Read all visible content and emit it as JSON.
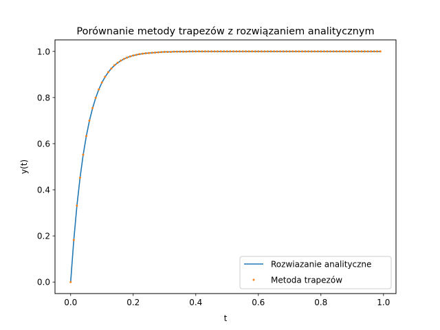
{
  "chart_data": {
    "type": "line",
    "title": "Porównanie metody trapezów z rozwiązaniem analitycznym",
    "xlabel": "t",
    "ylabel": "y(t)",
    "xlim": [
      -0.05,
      1.04
    ],
    "ylim": [
      -0.05,
      1.05
    ],
    "xticks": [
      0.0,
      0.2,
      0.4,
      0.6,
      0.8,
      1.0
    ],
    "xtick_labels": [
      "0.0",
      "0.2",
      "0.4",
      "0.6",
      "0.8",
      "1.0"
    ],
    "yticks": [
      0.0,
      0.2,
      0.4,
      0.6,
      0.8,
      1.0
    ],
    "ytick_labels": [
      "0.0",
      "0.2",
      "0.4",
      "0.6",
      "0.8",
      "1.0"
    ],
    "legend_position": "lower-right",
    "grid": false,
    "series": [
      {
        "name": "Rozwiazanie analityczne",
        "kind": "line",
        "color": "#1f77b4",
        "x": [
          0.0,
          0.01,
          0.02,
          0.03,
          0.04,
          0.05,
          0.06,
          0.07,
          0.08,
          0.09,
          0.1,
          0.11,
          0.12,
          0.13,
          0.14,
          0.15,
          0.16,
          0.17,
          0.18,
          0.19,
          0.2,
          0.21,
          0.22,
          0.23,
          0.24,
          0.25,
          0.26,
          0.27,
          0.28,
          0.29,
          0.3,
          0.32,
          0.34,
          0.36,
          0.38,
          0.4,
          0.45,
          0.5,
          0.55,
          0.6,
          0.65,
          0.7,
          0.75,
          0.8,
          0.85,
          0.9,
          0.95,
          0.99
        ],
        "y": [
          0.0,
          0.181,
          0.33,
          0.451,
          0.551,
          0.632,
          0.699,
          0.753,
          0.798,
          0.835,
          0.865,
          0.889,
          0.909,
          0.926,
          0.939,
          0.95,
          0.959,
          0.967,
          0.973,
          0.978,
          0.982,
          0.985,
          0.988,
          0.99,
          0.992,
          0.993,
          0.994,
          0.995,
          0.996,
          0.997,
          0.998,
          0.998,
          0.999,
          0.999,
          0.999,
          1.0,
          1.0,
          1.0,
          1.0,
          1.0,
          1.0,
          1.0,
          1.0,
          1.0,
          1.0,
          1.0,
          1.0,
          1.0
        ]
      },
      {
        "name": "Metoda trapezów",
        "kind": "scatter",
        "color": "#ff7f0e",
        "x": [
          0.0,
          0.01,
          0.02,
          0.03,
          0.04,
          0.05,
          0.06,
          0.07,
          0.08,
          0.09,
          0.1,
          0.11,
          0.12,
          0.13,
          0.14,
          0.15,
          0.16,
          0.17,
          0.18,
          0.19,
          0.2,
          0.21,
          0.22,
          0.23,
          0.24,
          0.25,
          0.26,
          0.27,
          0.28,
          0.29,
          0.3,
          0.31,
          0.32,
          0.33,
          0.34,
          0.35,
          0.36,
          0.37,
          0.38,
          0.39,
          0.4,
          0.41,
          0.42,
          0.43,
          0.44,
          0.45,
          0.46,
          0.47,
          0.48,
          0.49,
          0.5,
          0.51,
          0.52,
          0.53,
          0.54,
          0.55,
          0.56,
          0.57,
          0.58,
          0.59,
          0.6,
          0.61,
          0.62,
          0.63,
          0.64,
          0.65,
          0.66,
          0.67,
          0.68,
          0.69,
          0.7,
          0.71,
          0.72,
          0.73,
          0.74,
          0.75,
          0.76,
          0.77,
          0.78,
          0.79,
          0.8,
          0.81,
          0.82,
          0.83,
          0.84,
          0.85,
          0.86,
          0.87,
          0.88,
          0.89,
          0.9,
          0.91,
          0.92,
          0.93,
          0.94,
          0.95,
          0.96,
          0.97,
          0.98,
          0.99
        ],
        "y": [
          0.0,
          0.182,
          0.331,
          0.452,
          0.552,
          0.633,
          0.7,
          0.754,
          0.799,
          0.835,
          0.865,
          0.89,
          0.91,
          0.926,
          0.94,
          0.951,
          0.96,
          0.967,
          0.973,
          0.978,
          0.982,
          0.985,
          0.988,
          0.99,
          0.992,
          0.993,
          0.994,
          0.995,
          0.996,
          0.997,
          0.998,
          0.998,
          0.998,
          0.999,
          0.999,
          0.999,
          0.999,
          0.999,
          1.0,
          1.0,
          1.0,
          1.0,
          1.0,
          1.0,
          1.0,
          1.0,
          1.0,
          1.0,
          1.0,
          1.0,
          1.0,
          1.0,
          1.0,
          1.0,
          1.0,
          1.0,
          1.0,
          1.0,
          1.0,
          1.0,
          1.0,
          1.0,
          1.0,
          1.0,
          1.0,
          1.0,
          1.0,
          1.0,
          1.0,
          1.0,
          1.0,
          1.0,
          1.0,
          1.0,
          1.0,
          1.0,
          1.0,
          1.0,
          1.0,
          1.0,
          1.0,
          1.0,
          1.0,
          1.0,
          1.0,
          1.0,
          1.0,
          1.0,
          1.0,
          1.0,
          1.0,
          1.0,
          1.0,
          1.0,
          1.0,
          1.0,
          1.0,
          1.0,
          1.0,
          1.0
        ]
      }
    ]
  }
}
